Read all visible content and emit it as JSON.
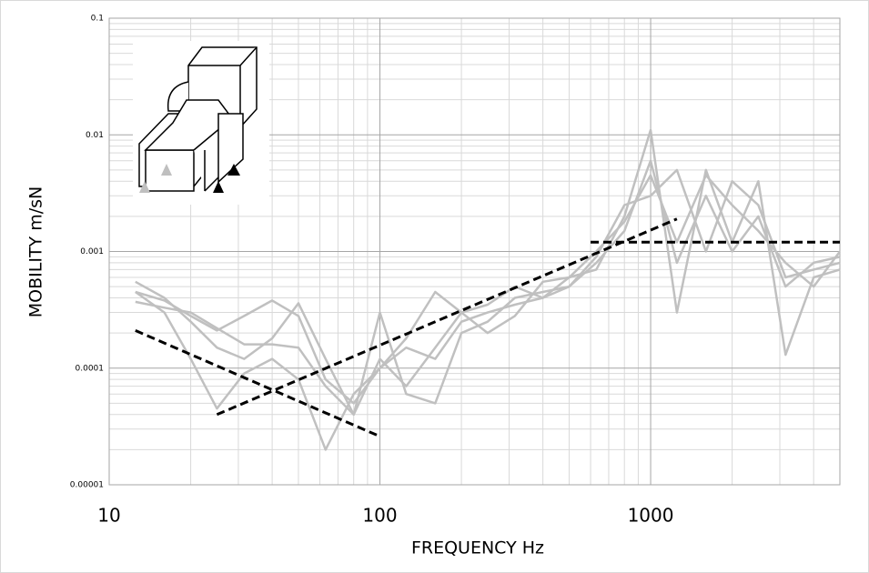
{
  "chart_data": {
    "type": "line",
    "xlabel": "FREQUENCY  Hz",
    "ylabel": "MOBILITY m/sN",
    "x": [
      12.5,
      16,
      20,
      25,
      31.5,
      40,
      50,
      63,
      80,
      100,
      125,
      160,
      200,
      250,
      315,
      400,
      500,
      630,
      800,
      1000,
      1250,
      1600,
      2000,
      2500,
      3150,
      4000,
      5000
    ],
    "series": [
      {
        "color": "#c0c0c0",
        "values": [
          0.00055,
          0.0004,
          0.00025,
          0.00015,
          0.00012,
          0.00018,
          0.00036,
          0.00012,
          4e-05,
          0.00012,
          7e-05,
          0.00015,
          0.0003,
          0.00035,
          0.0005,
          0.0004,
          0.0005,
          0.0008,
          0.0015,
          0.006,
          0.0008,
          0.003,
          0.001,
          0.002,
          0.0005,
          0.0008,
          0.0009
        ]
      },
      {
        "color": "#c0c0c0",
        "values": [
          0.00045,
          0.0003,
          0.00012,
          4.5e-05,
          9e-05,
          0.00012,
          8e-05,
          2e-05,
          6e-05,
          0.0001,
          0.00015,
          0.00012,
          0.00025,
          0.0003,
          0.00035,
          0.0004,
          0.0006,
          0.0007,
          0.002,
          0.011,
          0.0003,
          0.005,
          0.0012,
          0.004,
          0.00013,
          0.0006,
          0.0007
        ]
      },
      {
        "color": "#c0c0c0",
        "values": [
          0.00037,
          0.00033,
          0.0003,
          0.00022,
          0.00016,
          0.00016,
          0.00015,
          7e-05,
          4e-05,
          0.0003,
          6e-05,
          5e-05,
          0.0002,
          0.00025,
          0.0004,
          0.00045,
          0.0005,
          0.0009,
          0.0025,
          0.003,
          0.005,
          0.001,
          0.004,
          0.0025,
          0.0006,
          0.0007,
          0.0008
        ]
      },
      {
        "color": "#c0c0c0",
        "values": [
          0.00045,
          0.00038,
          0.00028,
          0.00021,
          0.00028,
          0.00038,
          0.00028,
          8e-05,
          5e-05,
          0.0001,
          0.00018,
          0.00045,
          0.0003,
          0.0002,
          0.00028,
          0.00055,
          0.0006,
          0.001,
          0.0018,
          0.0045,
          0.0012,
          0.0045,
          0.0025,
          0.0015,
          0.0008,
          0.0005,
          0.001
        ]
      },
      {
        "color": "#000000",
        "dash": true,
        "x": [
          12.5,
          100
        ],
        "values": [
          0.00021,
          2.6e-05
        ]
      },
      {
        "color": "#000000",
        "dash": true,
        "x": [
          25,
          1250
        ],
        "values": [
          4e-05,
          0.0019
        ]
      },
      {
        "color": "#000000",
        "dash": true,
        "x": [
          600,
          5000
        ],
        "values": [
          0.0012,
          0.0012
        ]
      }
    ],
    "xscale": "log",
    "yscale": "log",
    "xlim": [
      10,
      5000
    ],
    "ylim": [
      1e-05,
      0.1
    ],
    "xticks": [
      10,
      100,
      1000
    ],
    "yticks": [
      1e-05,
      0.0001,
      0.001,
      0.01,
      0.1
    ],
    "grid": true
  }
}
